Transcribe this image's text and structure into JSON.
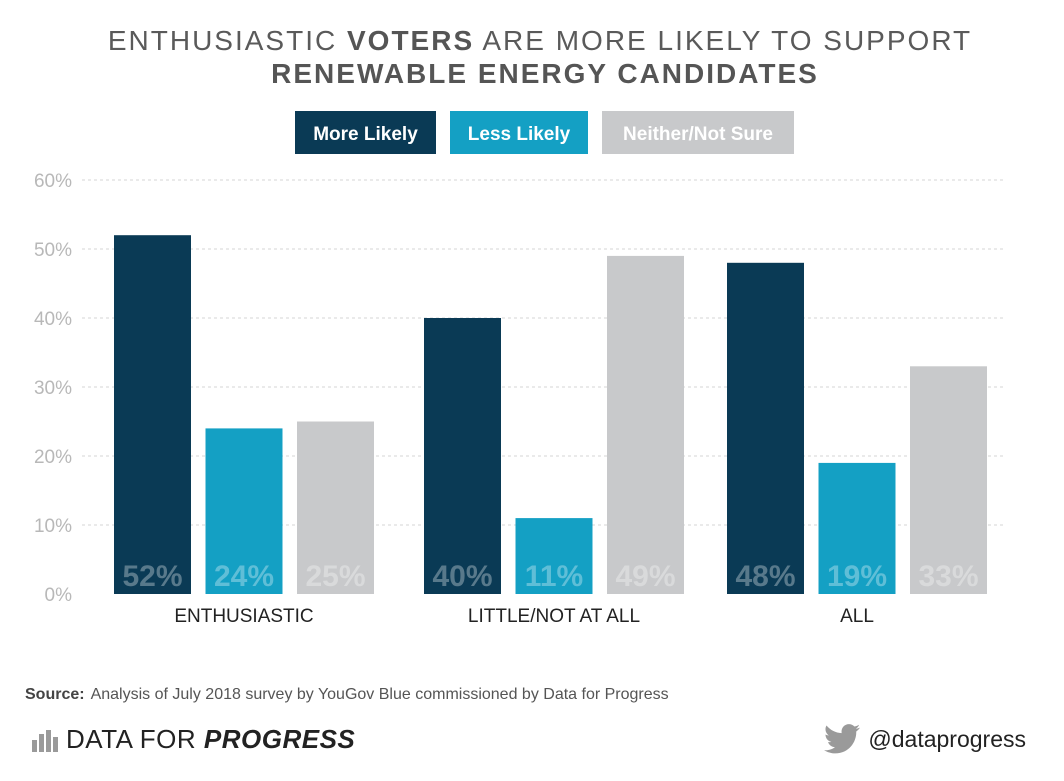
{
  "title": {
    "line1_pre": "ENTHUSIASTIC ",
    "line1_bold": "VOTERS",
    "line1_post": " ARE MORE LIKELY TO SUPPORT",
    "line2": "RENEWABLE ENERGY CANDIDATES"
  },
  "chart_data": {
    "type": "bar",
    "categories": [
      "ENTHUSIASTIC",
      "LITTLE/NOT AT ALL",
      "ALL"
    ],
    "series": [
      {
        "name": "More Likely",
        "color": "#0a3a55",
        "values": [
          52,
          40,
          48
        ],
        "labels": [
          "52%",
          "40%",
          "48%"
        ]
      },
      {
        "name": "Less Likely",
        "color": "#14a0c4",
        "values": [
          24,
          11,
          19
        ],
        "labels": [
          "24%",
          "11%",
          "19%"
        ]
      },
      {
        "name": "Neither/Not Sure",
        "color": "#c8c9cb",
        "values": [
          25,
          49,
          33
        ],
        "labels": [
          "25%",
          "49%",
          "33%"
        ]
      }
    ],
    "ylim": [
      0,
      60
    ],
    "yticks": [
      0,
      10,
      20,
      30,
      40,
      50,
      60
    ],
    "ytick_labels": [
      "0%",
      "10%",
      "20%",
      "30%",
      "40%",
      "50%",
      "60%"
    ],
    "grid": true,
    "legend_position": "top-center",
    "xlabel": "",
    "ylabel": ""
  },
  "footer": {
    "source_label": "Source:",
    "source_text": "Analysis of July 2018 survey by YouGov Blue commissioned by Data for Progress",
    "brand_plain": "DATA FOR ",
    "brand_bold": "PROGRESS",
    "handle": "@dataprogress"
  },
  "colors": {
    "text": "#3a3a3a",
    "grid": "#d5d5d5",
    "tick": "#b8b8b8",
    "twitter": "#9a9a9a"
  }
}
